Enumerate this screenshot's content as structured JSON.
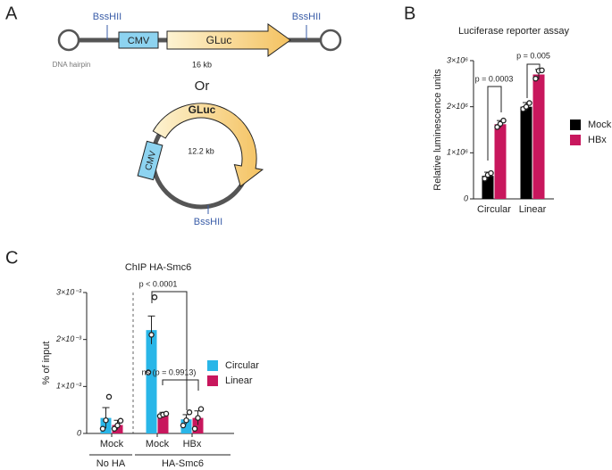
{
  "panel_labels": [
    "A",
    "B",
    "C"
  ],
  "diagram": {
    "linear": {
      "sites": [
        "BssHII",
        "BssHII"
      ],
      "promoter": "CMV",
      "gene": "GLuc",
      "size": "16 kb",
      "hairpin": "DNA hairpin"
    },
    "or": "Or",
    "circular": {
      "promoter": "CMV",
      "gene": "GLuc",
      "size": "12.2 kb",
      "site": "BssHII"
    }
  },
  "chart_data": [
    {
      "type": "bar",
      "title": "Luciferase reporter assay",
      "y_label": "Relative luminescence units",
      "categories": [
        "Circular",
        "Linear"
      ],
      "series": [
        {
          "name": "Mock",
          "color": "#000000",
          "values": [
            500000,
            2000000
          ],
          "errors": [
            80000,
            90000
          ],
          "points": [
            [
              440000,
              520000,
              560000
            ],
            [
              1950000,
              2000000,
              2080000
            ]
          ]
        },
        {
          "name": "HBx",
          "color": "#c8175d",
          "values": [
            1620000,
            2700000
          ],
          "errors": [
            80000,
            110000
          ],
          "points": [
            [
              1560000,
              1630000,
              1700000
            ],
            [
              2610000,
              2780000,
              2790000
            ]
          ]
        }
      ],
      "ylim": [
        0,
        3000000
      ],
      "yticks": [
        0,
        {
          "value": 1000000,
          "label": "1×10⁶"
        },
        {
          "value": 2000000,
          "label": "2×10⁶"
        },
        {
          "value": 3000000,
          "label": "3×10⁶"
        }
      ],
      "annotations": [
        "p = 0.0003",
        "p = 0.005"
      ],
      "legend": "right"
    },
    {
      "type": "bar",
      "title": "ChIP HA-Smc6",
      "y_label": "% of input",
      "categories": [
        "Mock",
        "Mock",
        "HBx"
      ],
      "groups": [
        "No HA",
        "HA-Smc6"
      ],
      "series": [
        {
          "name": "Circular",
          "color": "#29b6e8",
          "values": [
            0.00033,
            0.0022,
            0.0003
          ],
          "errors": [
            0.00022,
            0.0003,
            0.0001
          ],
          "points": [
            [
              0.0001,
              0.00028,
              0.00078
            ],
            [
              0.0013,
              0.0021,
              0.0029
            ],
            [
              0.00017,
              0.00028,
              0.00045
            ]
          ]
        },
        {
          "name": "Linear",
          "color": "#c8175d",
          "values": [
            0.00018,
            0.0004,
            0.00033
          ],
          "errors": [
            0.0001,
            5e-05,
            0.00015
          ],
          "points": [
            [
              0.0001,
              0.00017,
              0.00027
            ],
            [
              0.00037,
              0.0004,
              0.00042
            ],
            [
              0.0001,
              0.00033,
              0.00052
            ]
          ]
        }
      ],
      "ylim": [
        0,
        0.003
      ],
      "yticks": [
        0,
        {
          "value": 0.001,
          "label": "1×10⁻³"
        },
        {
          "value": 0.002,
          "label": "2×10⁻³"
        },
        {
          "value": 0.003,
          "label": "3×10⁻³"
        }
      ],
      "annotations": [
        "p < 0.0001",
        "ns (p = 0.9913)"
      ],
      "legend": "right"
    }
  ]
}
